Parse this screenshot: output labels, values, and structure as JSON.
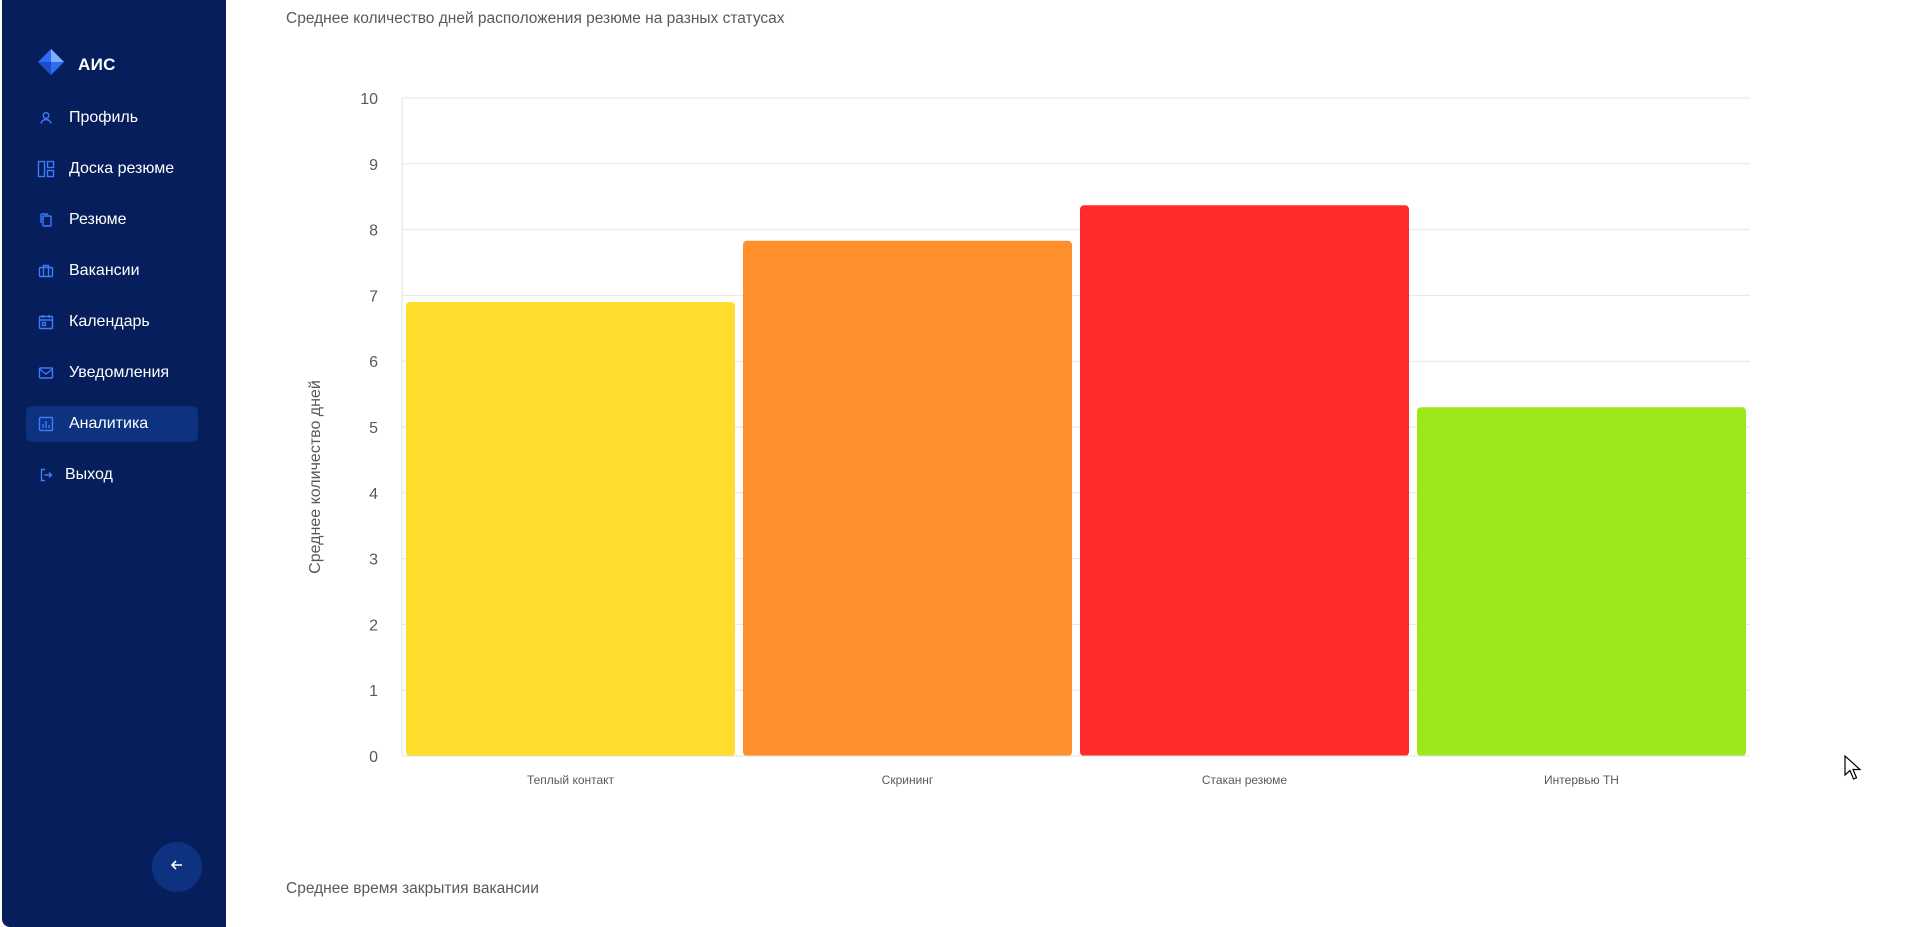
{
  "sidebar": {
    "brand": "АИС",
    "items": [
      {
        "label": "Профиль",
        "icon": "user-icon",
        "active": false
      },
      {
        "label": "Доска резюме",
        "icon": "dashboard-icon",
        "active": false
      },
      {
        "label": "Резюме",
        "icon": "copy-icon",
        "active": false
      },
      {
        "label": "Вакансии",
        "icon": "briefcase-icon",
        "active": false
      },
      {
        "label": "Календарь",
        "icon": "calendar-icon",
        "active": false
      },
      {
        "label": "Уведомления",
        "icon": "mail-icon",
        "active": false
      },
      {
        "label": "Аналитика",
        "icon": "bar-chart-icon",
        "active": true
      },
      {
        "label": "Выход",
        "icon": "logout-icon",
        "active": false
      }
    ],
    "collapse_icon": "arrow-left-icon"
  },
  "main": {
    "section1_title": "Среднее количество дней расположения резюме на разных статусах",
    "section2_title": "Среднее время закрытия вакансии"
  },
  "chart_data": {
    "type": "bar",
    "title": "",
    "xlabel": "",
    "ylabel": "Среднее количество дней",
    "ylim": [
      0,
      10
    ],
    "yticks": [
      0,
      1,
      2,
      3,
      4,
      5,
      6,
      7,
      8,
      9,
      10
    ],
    "grid": true,
    "categories": [
      "Теплый контакт",
      "Скрининг",
      "Стакан резюме",
      "Интервью ТН"
    ],
    "values": [
      6.9,
      7.83,
      8.37,
      5.3
    ],
    "colors": [
      "#ffdd2c",
      "#ff8f2b",
      "#ff2b2b",
      "#9ce81a"
    ]
  },
  "colors": {
    "sidebar_bg": "#061f5c",
    "active_bg": "#0c3280",
    "icon_accent": "#3d7bff"
  }
}
